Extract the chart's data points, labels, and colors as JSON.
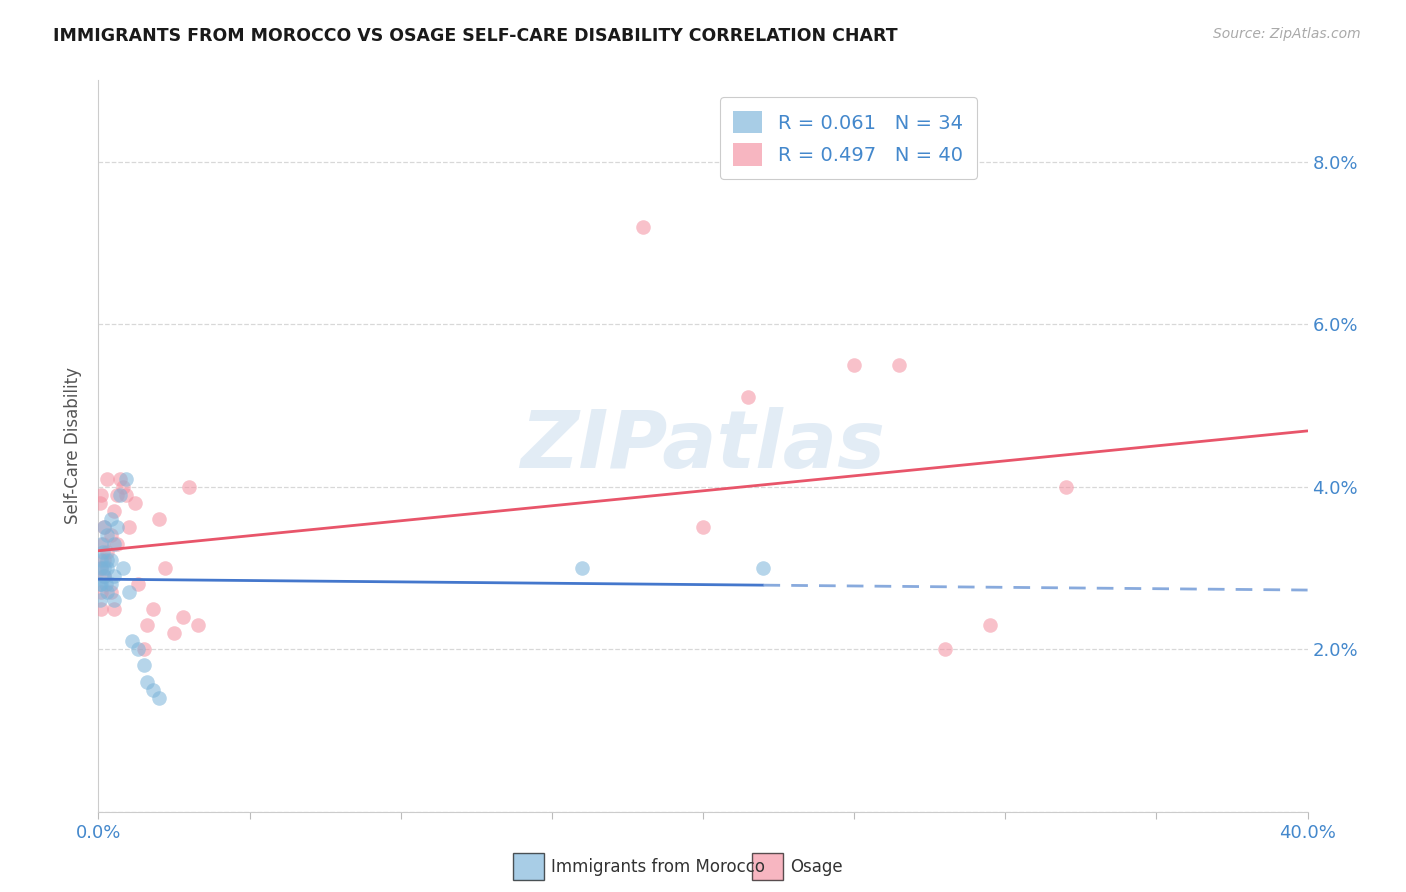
{
  "title": "IMMIGRANTS FROM MOROCCO VS OSAGE SELF-CARE DISABILITY CORRELATION CHART",
  "source": "Source: ZipAtlas.com",
  "x_label_blue": "Immigrants from Morocco",
  "x_label_pink": "Osage",
  "ylabel": "Self-Care Disability",
  "xlim": [
    0.0,
    0.4
  ],
  "ylim": [
    0.0,
    0.09
  ],
  "ytick_vals": [
    0.0,
    0.02,
    0.04,
    0.06,
    0.08
  ],
  "ytick_labels": [
    "",
    "2.0%",
    "4.0%",
    "6.0%",
    "8.0%"
  ],
  "xtick_vals": [
    0.0,
    0.05,
    0.1,
    0.15,
    0.2,
    0.25,
    0.3,
    0.35,
    0.4
  ],
  "xtick_labels": [
    "0.0%",
    "",
    "",
    "",
    "",
    "",
    "",
    "",
    "40.0%"
  ],
  "legend_r_blue": "R = 0.061",
  "legend_n_blue": "N = 34",
  "legend_r_pink": "R = 0.497",
  "legend_n_pink": "N = 40",
  "color_blue": "#7ab3d9",
  "color_pink": "#f48fa0",
  "color_blue_line_solid": "#4477cc",
  "color_pink_line_solid": "#e8556a",
  "color_blue_line_dash": "#88aadd",
  "color_label": "#4488cc",
  "watermark_color": "#b8d0e8",
  "background": "#ffffff",
  "grid_color": "#d8d8d8",
  "blue_x": [
    0.0005,
    0.0005,
    0.001,
    0.001,
    0.001,
    0.001,
    0.0015,
    0.002,
    0.002,
    0.002,
    0.0025,
    0.003,
    0.003,
    0.003,
    0.003,
    0.004,
    0.004,
    0.004,
    0.005,
    0.005,
    0.005,
    0.006,
    0.007,
    0.008,
    0.009,
    0.01,
    0.011,
    0.013,
    0.015,
    0.016,
    0.018,
    0.02,
    0.16,
    0.22
  ],
  "blue_y": [
    0.028,
    0.026,
    0.031,
    0.03,
    0.028,
    0.033,
    0.032,
    0.03,
    0.029,
    0.035,
    0.028,
    0.034,
    0.031,
    0.03,
    0.027,
    0.036,
    0.031,
    0.028,
    0.033,
    0.029,
    0.026,
    0.035,
    0.039,
    0.03,
    0.041,
    0.027,
    0.021,
    0.02,
    0.018,
    0.016,
    0.015,
    0.014,
    0.03,
    0.03
  ],
  "pink_x": [
    0.0005,
    0.001,
    0.001,
    0.001,
    0.001,
    0.0015,
    0.002,
    0.002,
    0.002,
    0.003,
    0.003,
    0.004,
    0.004,
    0.005,
    0.005,
    0.006,
    0.006,
    0.007,
    0.008,
    0.009,
    0.01,
    0.012,
    0.013,
    0.015,
    0.016,
    0.018,
    0.02,
    0.022,
    0.025,
    0.028,
    0.03,
    0.033,
    0.18,
    0.2,
    0.215,
    0.25,
    0.265,
    0.28,
    0.295,
    0.32
  ],
  "pink_y": [
    0.038,
    0.03,
    0.027,
    0.025,
    0.039,
    0.033,
    0.031,
    0.029,
    0.035,
    0.032,
    0.041,
    0.034,
    0.027,
    0.037,
    0.025,
    0.039,
    0.033,
    0.041,
    0.04,
    0.039,
    0.035,
    0.038,
    0.028,
    0.02,
    0.023,
    0.025,
    0.036,
    0.03,
    0.022,
    0.024,
    0.04,
    0.023,
    0.072,
    0.035,
    0.051,
    0.055,
    0.055,
    0.02,
    0.023,
    0.04
  ]
}
